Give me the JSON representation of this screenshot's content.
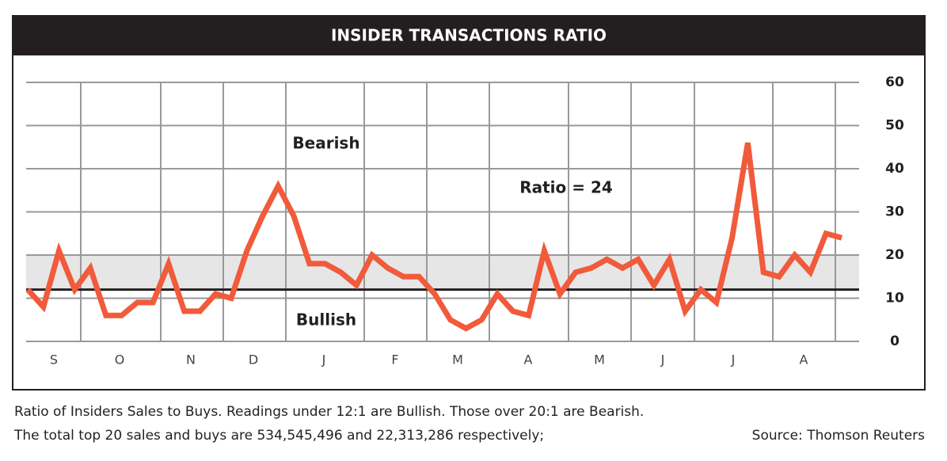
{
  "chart_data": {
    "type": "line",
    "title": "INSIDER TRANSACTIONS RATIO",
    "months": [
      "S",
      "O",
      "N",
      "D",
      "J",
      "F",
      "M",
      "A",
      "M",
      "J",
      "J",
      "A"
    ],
    "series": [
      {
        "name": "Ratio",
        "color": "#f15a3a",
        "values": [
          12,
          8,
          21,
          12,
          17,
          6,
          6,
          9,
          9,
          18,
          7,
          7,
          11,
          10,
          21,
          29,
          36,
          29,
          18,
          18,
          16,
          13,
          20,
          17,
          15,
          15,
          11,
          5,
          3,
          5,
          11,
          7,
          6,
          21,
          11,
          16,
          17,
          19,
          17,
          19,
          13,
          19,
          7,
          12,
          9,
          24,
          46,
          16,
          15,
          20,
          16,
          25,
          24
        ]
      }
    ],
    "ylim": [
      0,
      60
    ],
    "yticks": [
      0,
      10,
      20,
      30,
      40,
      50,
      60
    ],
    "band": [
      12,
      20
    ],
    "annotations": [
      "Bearish",
      "Bullish",
      "Ratio = 24"
    ],
    "caption": [
      "Ratio of Insiders Sales to Buys. Readings under 12:1 are Bullish. Those over 20:1 are Bearish.",
      "The total top 20 sales and buys are 534,545,496 and 22,313,286 respectively;"
    ],
    "source": "Source: Thomson Reuters"
  }
}
